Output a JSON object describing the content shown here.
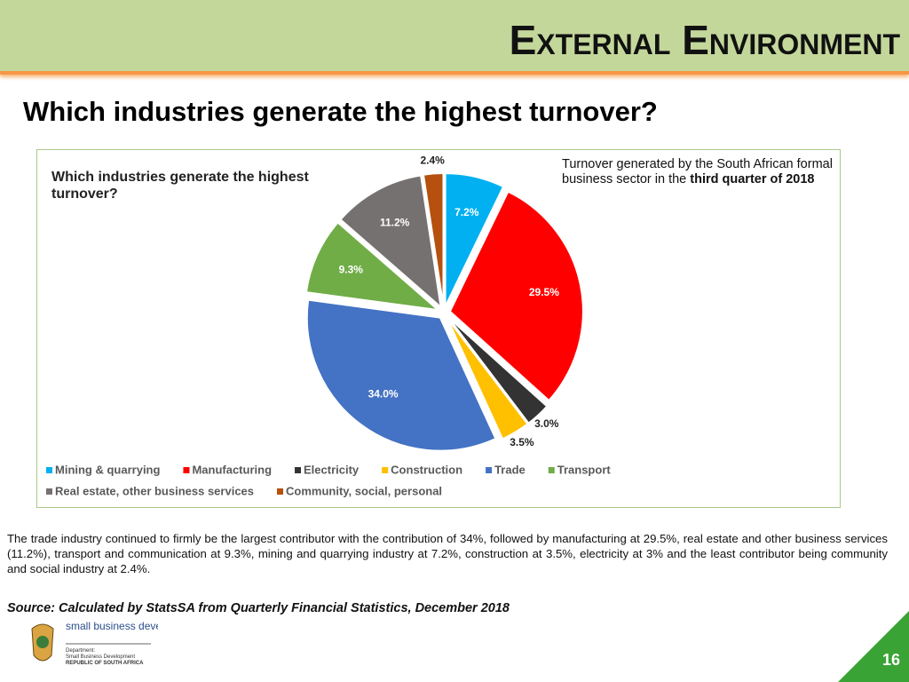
{
  "header": {
    "title": "External Environment",
    "subtitle": "Which industries generate the highest turnover?"
  },
  "chart_data": {
    "type": "pie",
    "title": "Which industries generate the highest turnover?",
    "annotation": {
      "text": "Turnover generated by the South African formal business sector in the ",
      "bold": "third quarter of 2018"
    },
    "categories": [
      "Mining & quarrying",
      "Manufacturing",
      "Electricity",
      "Construction",
      "Trade",
      "Transport",
      "Real estate, other business services",
      "Community, social, personal"
    ],
    "values": [
      7.2,
      29.5,
      3.0,
      3.5,
      34.0,
      9.3,
      11.2,
      2.4
    ],
    "value_labels": [
      "7.2%",
      "29.5%",
      "3.0%",
      "3.5%",
      "34.0%",
      "9.3%",
      "11.2%",
      "2.4%"
    ],
    "colors": [
      "#00b0f0",
      "#ff0000",
      "#333333",
      "#ffc000",
      "#4472c4",
      "#70ad47",
      "#767171",
      "#b5500f"
    ],
    "legend": "bottom"
  },
  "body": "The trade industry continued to firmly be the largest contributor with the contribution of 34%, followed by manufacturing at 29.5%, real estate and other business services (11.2%), transport and communication at 9.3%, mining and quarrying industry at 7.2%, construction at 3.5%, electricity at 3% and the least contributor being community and social industry at 2.4%.",
  "source": "Source: Calculated by StatsSA from Quarterly Financial Statistics, December 2018",
  "logo": {
    "name": "small business development",
    "department": "Department:",
    "department_name": "Small Business Development",
    "country": "REPUBLIC OF SOUTH AFRICA"
  },
  "page_number": "16"
}
